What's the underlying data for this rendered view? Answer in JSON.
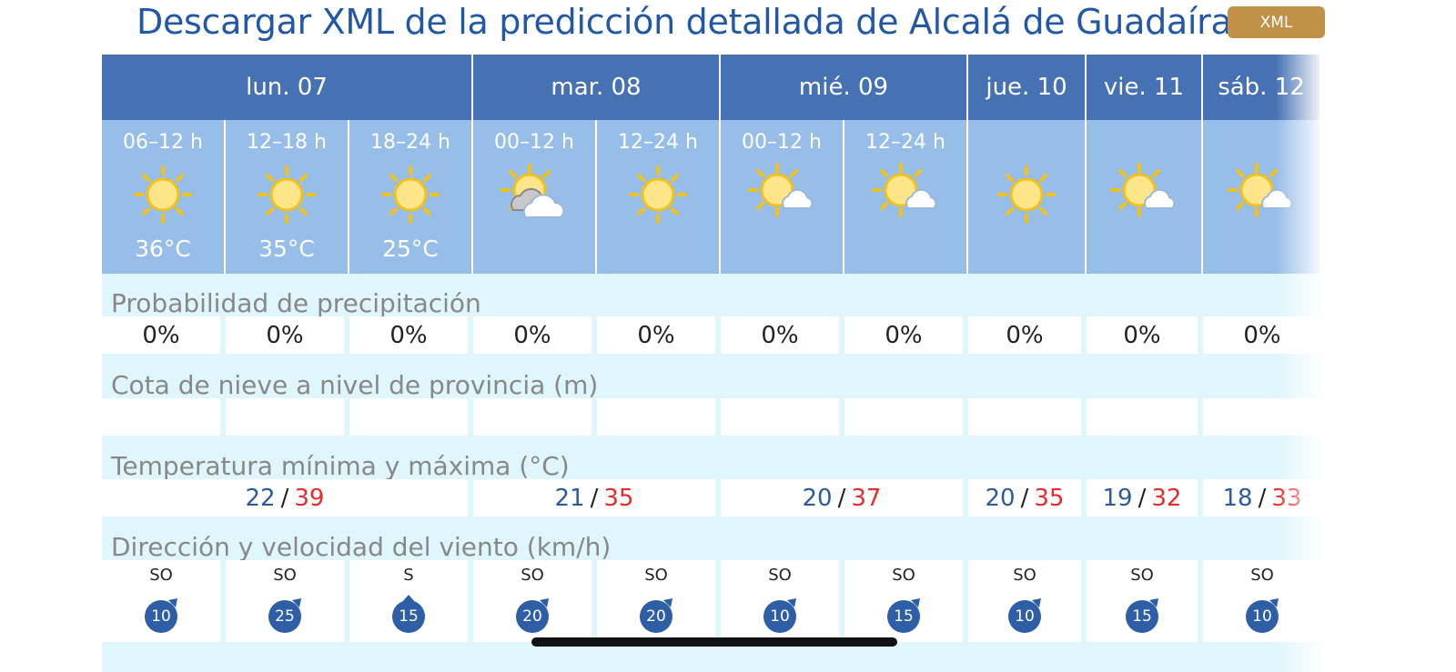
{
  "header": {
    "title": "Descargar XML de la predicción detallada de Alcalá de Guadaíra",
    "xml_button": "XML"
  },
  "days": [
    {
      "label": "lun. 07"
    },
    {
      "label": "mar. 08"
    },
    {
      "label": "mié. 09"
    },
    {
      "label": "jue. 10"
    },
    {
      "label": "vie. 11"
    },
    {
      "label": "sáb. 12"
    }
  ],
  "periods": [
    {
      "time": "06–12 h",
      "temp": "36°C",
      "icon": "sun-icon"
    },
    {
      "time": "12–18 h",
      "temp": "35°C",
      "icon": "sun-icon"
    },
    {
      "time": "18–24 h",
      "temp": "25°C",
      "icon": "sun-icon"
    },
    {
      "time": "00–12 h",
      "temp": "",
      "icon": "sun-cloud-icon"
    },
    {
      "time": "12–24 h",
      "temp": "",
      "icon": "sun-icon"
    },
    {
      "time": "00–12 h",
      "temp": "",
      "icon": "sun-small-cloud-icon"
    },
    {
      "time": "12–24 h",
      "temp": "",
      "icon": "sun-small-cloud-icon"
    },
    {
      "time": "",
      "temp": "",
      "icon": "sun-icon"
    },
    {
      "time": "",
      "temp": "",
      "icon": "sun-small-cloud-icon"
    },
    {
      "time": "",
      "temp": "",
      "icon": "sun-small-cloud-icon"
    }
  ],
  "precipitation": {
    "label": "Probabilidad de precipitación",
    "values": [
      "0%",
      "0%",
      "0%",
      "0%",
      "0%",
      "0%",
      "0%",
      "0%",
      "0%",
      "0%"
    ]
  },
  "snow": {
    "label": "Cota de nieve a nivel de provincia (m)",
    "values": [
      "",
      "",
      "",
      "",
      "",
      "",
      "",
      "",
      "",
      ""
    ]
  },
  "minmax": {
    "label": "Temperatura mínima y máxima (°C)",
    "values": [
      {
        "min": "22",
        "sep": "/",
        "max": "39"
      },
      {
        "min": "21",
        "sep": "/",
        "max": "35"
      },
      {
        "min": "20",
        "sep": "/",
        "max": "37"
      },
      {
        "min": "20",
        "sep": "/",
        "max": "35"
      },
      {
        "min": "19",
        "sep": "/",
        "max": "32"
      },
      {
        "min": "18",
        "sep": "/",
        "max": "33"
      }
    ]
  },
  "wind": {
    "label": "Dirección y velocidad del viento (km/h)",
    "values": [
      {
        "dir": "SO",
        "speed": "10"
      },
      {
        "dir": "SO",
        "speed": "25"
      },
      {
        "dir": "S",
        "speed": "15"
      },
      {
        "dir": "SO",
        "speed": "20"
      },
      {
        "dir": "SO",
        "speed": "20"
      },
      {
        "dir": "SO",
        "speed": "10"
      },
      {
        "dir": "SO",
        "speed": "15"
      },
      {
        "dir": "SO",
        "speed": "10"
      },
      {
        "dir": "SO",
        "speed": "15"
      },
      {
        "dir": "SO",
        "speed": "10"
      }
    ]
  },
  "colors": {
    "accent": "#4672b3",
    "period_bg": "#97bde9",
    "section_bg": "#dff6fd",
    "max_temp": "#e52c2c",
    "min_temp": "#2e5b9e",
    "xml_button": "#c09147"
  }
}
